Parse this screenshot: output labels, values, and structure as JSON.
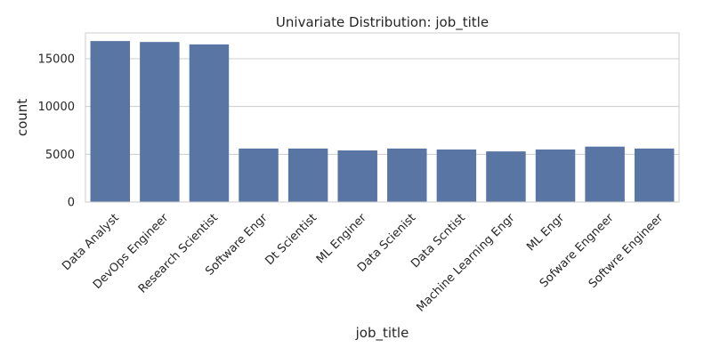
{
  "chart_data": {
    "type": "bar",
    "title": "Univariate Distribution: job_title",
    "xlabel": "job_title",
    "ylabel": "count",
    "categories": [
      "Data Analyst",
      "DevOps Engineer",
      "Research Scientist",
      "Software Engr",
      "Dt Scientist",
      "ML Enginer",
      "Data Scienist",
      "Data Scntist",
      "Machine Learning Engr",
      "ML Engr",
      "Sofware Engneer",
      "Softwre Engineer"
    ],
    "values": [
      16850,
      16750,
      16500,
      5600,
      5600,
      5400,
      5600,
      5500,
      5300,
      5500,
      5800,
      5600
    ],
    "ylim": [
      0,
      17700
    ],
    "yticks": [
      0,
      5000,
      10000,
      15000
    ],
    "grid": true,
    "bar_color": "#5875a4"
  }
}
